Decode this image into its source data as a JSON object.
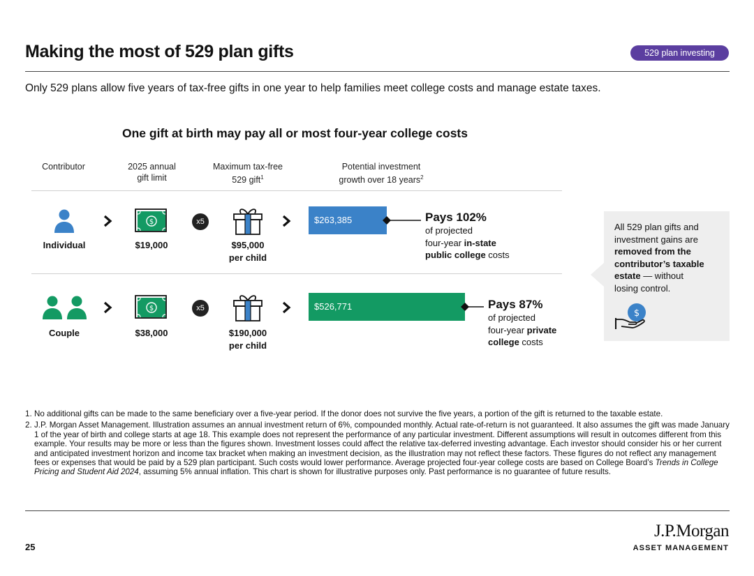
{
  "header": {
    "title": "Making the most of 529 plan gifts",
    "badge": "529 plan investing",
    "subtitle": "Only 529 plans allow five years of tax-free gifts in one year to help families meet college costs and manage estate taxes."
  },
  "section_title": "One gift at birth may pay all or most four-year college costs",
  "columns": {
    "contributor": "Contributor",
    "gift_limit_1": "2025 annual",
    "gift_limit_2": "gift limit",
    "max_gift_1": "Maximum tax-free",
    "max_gift_2": "529 gift",
    "max_gift_sup": "1",
    "growth_1": "Potential investment",
    "growth_2": "growth over 18 years",
    "growth_sup": "2"
  },
  "multiplier": "x5",
  "rows": [
    {
      "contributor": "Individual",
      "gift_limit": "$19,000",
      "max_gift": "$95,000",
      "per": "per child",
      "growth": "$263,385",
      "growth_value": 263385,
      "bar_color": "#3b82c8",
      "pays_heading": "Pays 102%",
      "pays_line1": "of projected",
      "pays_line2_pre": "four-year ",
      "pays_line2_bold": "in-state",
      "pays_line3_bold": "public college",
      "pays_line3_post": " costs"
    },
    {
      "contributor": "Couple",
      "gift_limit": "$38,000",
      "max_gift": "$190,000",
      "per": "per child",
      "growth": "$526,771",
      "growth_value": 526771,
      "bar_color": "#139a63",
      "pays_heading": "Pays 87%",
      "pays_line1": "of projected",
      "pays_line2_pre": "four-year ",
      "pays_line2_bold": "private",
      "pays_line3_bold": "college",
      "pays_line3_post": " costs"
    }
  ],
  "callout": {
    "line1": "All 529 plan gifts and",
    "line2": "investment gains are",
    "line3_bold": "removed from the",
    "line4_bold": "contributor’s taxable",
    "line5_bold": "estate",
    "line5_post": " — without",
    "line6": "losing control.",
    "icon": "hand-dollar-icon"
  },
  "footnotes": [
    {
      "num": "1.",
      "text": "No additional gifts can be made to the same beneficiary over a five-year period. If the donor does not survive the five years, a portion of the gift is returned to the taxable estate."
    },
    {
      "num": "2.",
      "text_pre": "J.P. Morgan Asset Management. Illustration assumes an annual investment return of 6%, compounded monthly. Actual rate-of-return is not guaranteed. It also assumes the gift was made January 1 of the year of birth and college starts at age 18. This example does not represent the performance of any particular investment. Different assumptions will result in outcomes different from this example. Your results may be more or less than the figures shown. Investment losses could affect the relative tax-deferred investing advantage. Each investor should consider his or her current and anticipated investment horizon and income tax bracket when making an investment decision, as the illustration may not reflect these factors. These figures do not reflect any management fees or expenses that would be paid by a 529 plan participant. Such costs would lower performance. Average projected four-year college costs are based on College Board’s ",
      "text_italic": "Trends in College Pricing and Student Aid 2024",
      "text_post": ", assuming 5% annual inflation. This chart is shown for illustrative purposes only. Past performance is no guarantee of future results."
    }
  ],
  "footer": {
    "page_number": "25",
    "brand": "J.P.Morgan",
    "brand_sub": "ASSET MANAGEMENT"
  },
  "colors": {
    "badge": "#5b3ea0",
    "bar_individual": "#3b82c8",
    "bar_couple": "#139a63",
    "person_individual": "#3b82c8",
    "person_couple": "#139a63",
    "money": "#139a63",
    "gift_ribbon": "#3b82c8"
  }
}
